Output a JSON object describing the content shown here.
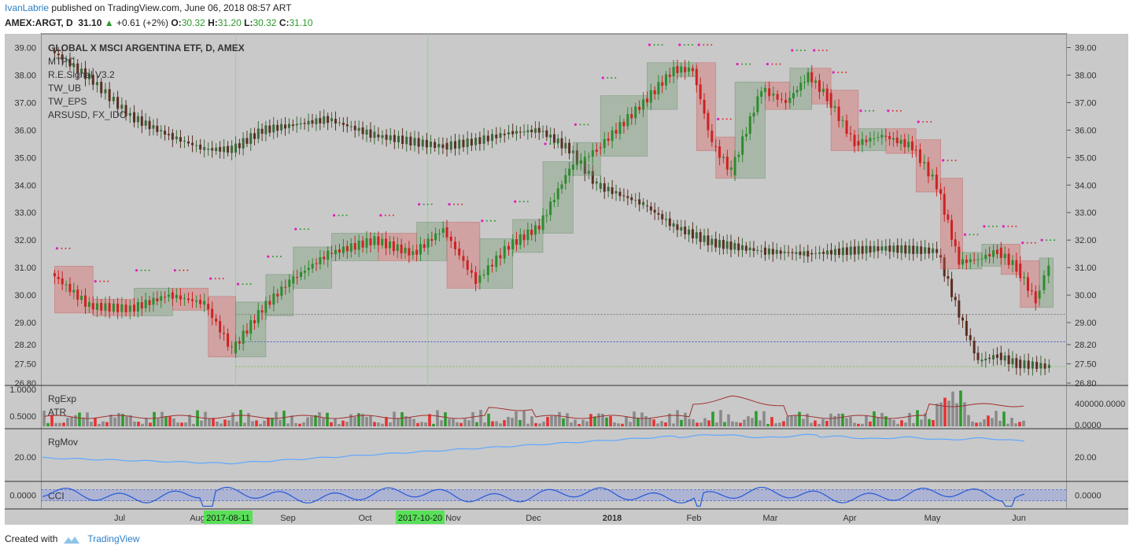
{
  "header": {
    "user": "IvanLabrie",
    "published_text": "published on TradingView.com, June 06, 2018 08:57 ART",
    "symbol": "AMEX:ARGT, D",
    "last": "31.10",
    "change_arrow": "▲",
    "change": "+0.61 (+2%)",
    "open_label": "O:",
    "open": "30.32",
    "high_label": "H:",
    "high": "31.20",
    "low_label": "L:",
    "low": "30.32",
    "close_label": "C:",
    "close": "31.10"
  },
  "legend": [
    "GLOBAL X MSCI ARGENTINA ETF, D, AMEX",
    "MTPC",
    "R.E.Signal V3.2",
    "TW_UB",
    "TW_EPS",
    "ARSUSD, FX_IDC"
  ],
  "footer": {
    "created_with": "Created with",
    "brand": "TradingView"
  },
  "colors": {
    "panel_bg": "#c9c9c9",
    "up": "#2e8b2e",
    "down": "#8b2a1e",
    "ars_line": "#5a2e22",
    "atr_line": "#a03030",
    "rgmov_line": "#5fa8ff",
    "cci_line": "#2e5fd8",
    "accent": "#2a7fc9"
  },
  "chart_data": {
    "type": "line",
    "title": "GLOBAL X MSCI ARGENTINA ETF, D, AMEX",
    "xlabels": [
      "Jul",
      "Aug",
      "2017-08-11",
      "Sep",
      "Oct",
      "2017-10-20",
      "Nov",
      "Dec",
      "2018",
      "Feb",
      "Mar",
      "Apr",
      "May",
      "Jun"
    ],
    "vlines": [
      "2017-08-11",
      "2017-10-20"
    ],
    "price_axis": {
      "ticks": [
        39.0,
        38.0,
        37.0,
        36.0,
        35.0,
        34.0,
        33.0,
        32.0,
        31.0,
        30.0,
        29.0,
        28.2,
        27.5,
        26.8
      ],
      "ylim": [
        26.8,
        39.3
      ]
    },
    "hlines": [
      29.3,
      28.3,
      27.4
    ],
    "series": [
      {
        "name": "GLOBAL X MSCI ARGENTINA ETF",
        "x": [
          "2017-06-06",
          "2017-06-20",
          "2017-07-05",
          "2017-07-19",
          "2017-08-01",
          "2017-08-11",
          "2017-08-22",
          "2017-09-01",
          "2017-09-15",
          "2017-10-02",
          "2017-10-16",
          "2017-10-27",
          "2017-11-08",
          "2017-11-20",
          "2017-12-01",
          "2017-12-12",
          "2017-12-22",
          "2018-01-08",
          "2018-01-19",
          "2018-01-26",
          "2018-02-02",
          "2018-02-09",
          "2018-02-20",
          "2018-03-01",
          "2018-03-09",
          "2018-03-16",
          "2018-03-26",
          "2018-04-05",
          "2018-04-16",
          "2018-04-25",
          "2018-05-03",
          "2018-05-10",
          "2018-05-17",
          "2018-05-24",
          "2018-05-31",
          "2018-06-05"
        ],
        "values": [
          30.8,
          29.6,
          29.5,
          30.0,
          29.7,
          28.0,
          29.5,
          30.5,
          31.5,
          32.0,
          31.5,
          32.4,
          30.5,
          31.8,
          32.5,
          34.6,
          35.3,
          37.0,
          38.2,
          38.2,
          35.5,
          34.5,
          37.5,
          37.0,
          38.0,
          37.2,
          35.5,
          35.8,
          35.4,
          34.0,
          31.2,
          31.3,
          31.6,
          31.0,
          29.8,
          31.1
        ]
      },
      {
        "name": "ARSUSD, FX_IDC",
        "x": [
          "2017-06-06",
          "2017-06-20",
          "2017-07-05",
          "2017-07-19",
          "2017-08-01",
          "2017-08-11",
          "2017-08-22",
          "2017-09-15",
          "2017-10-02",
          "2017-10-27",
          "2017-11-08",
          "2017-11-20",
          "2017-12-01",
          "2017-12-12",
          "2017-12-22",
          "2018-01-08",
          "2018-01-19",
          "2018-02-02",
          "2018-02-20",
          "2018-03-09",
          "2018-04-05",
          "2018-04-25",
          "2018-05-03",
          "2018-05-10",
          "2018-05-17",
          "2018-05-24",
          "2018-06-05"
        ],
        "values": [
          38.9,
          37.9,
          36.5,
          35.8,
          35.3,
          35.3,
          36.0,
          36.4,
          35.8,
          35.4,
          35.6,
          35.9,
          36.0,
          35.3,
          34.0,
          33.3,
          32.5,
          31.9,
          31.6,
          31.5,
          31.7,
          31.6,
          29.3,
          27.6,
          27.8,
          27.5,
          27.4
        ]
      }
    ],
    "panels": [
      {
        "title": "RgExp",
        "subtitle": "ATR",
        "left_ticks": [
          "1.0000",
          "0.5000"
        ],
        "right_ticks": [
          "400000.0000",
          "0.0000"
        ]
      },
      {
        "title": "RgMov",
        "left_ticks": [
          "20.00"
        ],
        "right_ticks": [
          "20.00"
        ]
      },
      {
        "title": "CCI",
        "left_ticks": [
          "0.0000"
        ],
        "right_ticks": [
          "0.0000"
        ]
      }
    ],
    "grid": false,
    "legend_position": "top-left"
  }
}
